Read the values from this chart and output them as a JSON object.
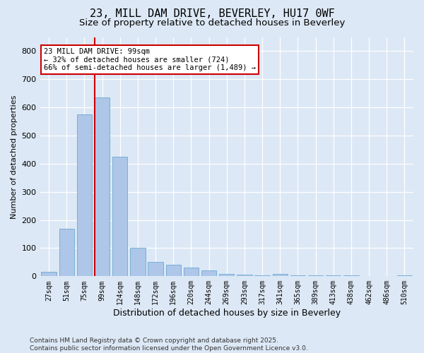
{
  "title1": "23, MILL DAM DRIVE, BEVERLEY, HU17 0WF",
  "title2": "Size of property relative to detached houses in Beverley",
  "xlabel": "Distribution of detached houses by size in Beverley",
  "ylabel": "Number of detached properties",
  "categories": [
    "27sqm",
    "51sqm",
    "75sqm",
    "99sqm",
    "124sqm",
    "148sqm",
    "172sqm",
    "196sqm",
    "220sqm",
    "244sqm",
    "269sqm",
    "293sqm",
    "317sqm",
    "341sqm",
    "365sqm",
    "389sqm",
    "413sqm",
    "438sqm",
    "462sqm",
    "486sqm",
    "510sqm"
  ],
  "values": [
    15,
    170,
    575,
    635,
    425,
    100,
    52,
    40,
    32,
    22,
    9,
    5,
    3,
    8,
    4,
    3,
    4,
    3,
    0,
    0,
    4
  ],
  "bar_color": "#aec6e8",
  "bar_edgecolor": "#6aaad4",
  "vline_color": "#cc0000",
  "annotation_text": "23 MILL DAM DRIVE: 99sqm\n← 32% of detached houses are smaller (724)\n66% of semi-detached houses are larger (1,489) →",
  "annotation_box_facecolor": "#ffffff",
  "annotation_box_edgecolor": "#cc0000",
  "ylim": [
    0,
    850
  ],
  "yticks": [
    0,
    100,
    200,
    300,
    400,
    500,
    600,
    700,
    800
  ],
  "background_color": "#dce8f5",
  "footer": "Contains HM Land Registry data © Crown copyright and database right 2025.\nContains public sector information licensed under the Open Government Licence v3.0.",
  "title_fontsize": 11,
  "subtitle_fontsize": 9.5,
  "footer_fontsize": 6.5,
  "xlabel_fontsize": 9,
  "ylabel_fontsize": 8,
  "tick_fontsize": 7,
  "ytick_fontsize": 8
}
